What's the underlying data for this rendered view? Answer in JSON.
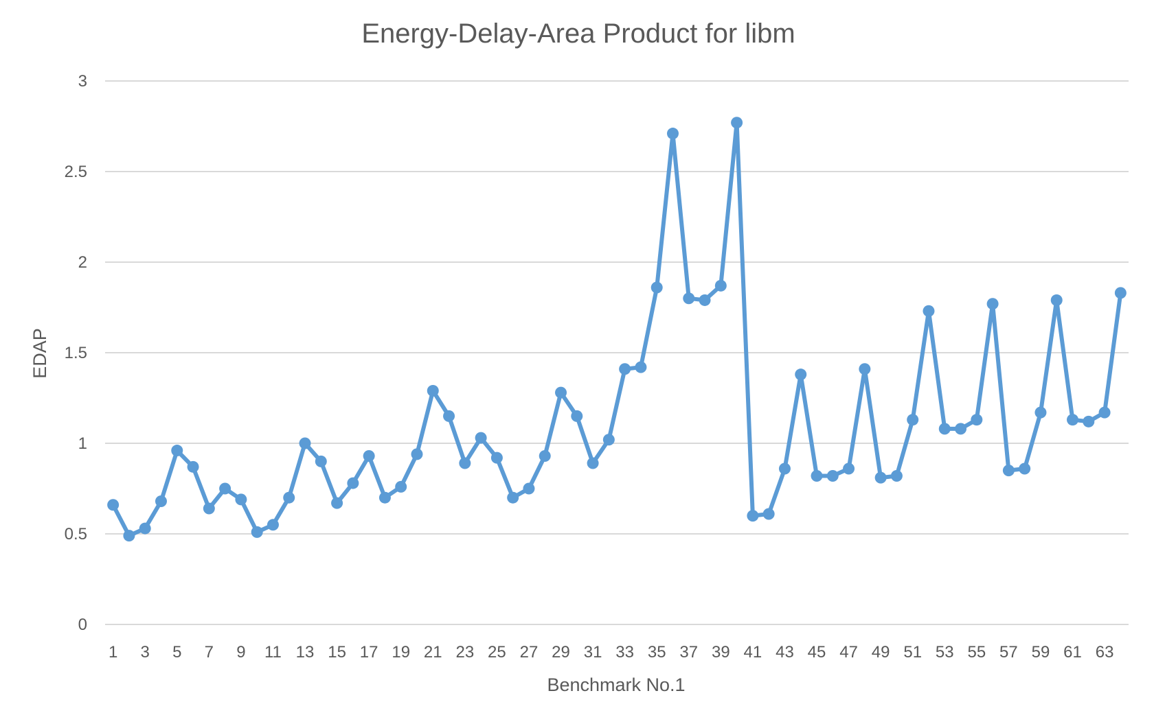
{
  "chart_data": {
    "type": "line",
    "title": "Energy-Delay-Area Product for libm",
    "xlabel": "Benchmark No.1",
    "ylabel": "EDAP",
    "ylim": [
      0,
      3
    ],
    "y_ticks": [
      "0",
      "0.5",
      "1",
      "1.5",
      "2",
      "2.5",
      "3"
    ],
    "x_tick_labels": [
      "1",
      "3",
      "5",
      "7",
      "9",
      "11",
      "13",
      "15",
      "17",
      "19",
      "21",
      "23",
      "25",
      "27",
      "29",
      "31",
      "33",
      "35",
      "37",
      "39",
      "41",
      "43",
      "45",
      "47",
      "49",
      "51",
      "53",
      "55",
      "57",
      "59",
      "61",
      "63"
    ],
    "grid": true,
    "legend": "none",
    "color": "#5b9bd5",
    "x": [
      1,
      2,
      3,
      4,
      5,
      6,
      7,
      8,
      9,
      10,
      11,
      12,
      13,
      14,
      15,
      16,
      17,
      18,
      19,
      20,
      21,
      22,
      23,
      24,
      25,
      26,
      27,
      28,
      29,
      30,
      31,
      32,
      33,
      34,
      35,
      36,
      37,
      38,
      39,
      40,
      41,
      42,
      43,
      44,
      45,
      46,
      47,
      48,
      49,
      50,
      51,
      52,
      53,
      54,
      55,
      56,
      57,
      58,
      59,
      60,
      61,
      62,
      63,
      64
    ],
    "values": [
      0.66,
      0.49,
      0.53,
      0.68,
      0.96,
      0.87,
      0.64,
      0.75,
      0.69,
      0.51,
      0.55,
      0.7,
      1.0,
      0.9,
      0.67,
      0.78,
      0.93,
      0.7,
      0.76,
      0.94,
      1.29,
      1.15,
      0.89,
      1.03,
      0.92,
      0.7,
      0.75,
      0.93,
      1.28,
      1.15,
      0.89,
      1.02,
      1.41,
      1.42,
      1.86,
      2.71,
      1.8,
      1.79,
      1.87,
      2.77,
      0.6,
      0.61,
      0.86,
      1.38,
      0.82,
      0.82,
      0.86,
      1.41,
      0.81,
      0.82,
      1.13,
      1.73,
      1.08,
      1.08,
      1.13,
      1.77,
      0.85,
      0.86,
      1.17,
      1.79,
      1.13,
      1.12,
      1.17,
      1.83
    ]
  }
}
